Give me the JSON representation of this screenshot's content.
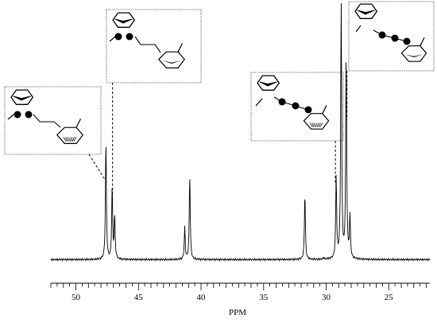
{
  "chart_data": {
    "type": "line",
    "xlabel": "PPM",
    "ylabel": "",
    "title": "",
    "x_reversed": true,
    "xlim": [
      52.0,
      21.5
    ],
    "ylim": [
      0,
      100
    ],
    "major_ticks": [
      50,
      45,
      40,
      35,
      30,
      25
    ],
    "tick_labels": [
      "50",
      "45",
      "40",
      "35",
      "30",
      "25"
    ],
    "minor_tick_step": 0.5,
    "grid": false,
    "baseline": 3.5,
    "peaks": [
      {
        "ppm": 47.6,
        "height": 45
      },
      {
        "ppm": 47.1,
        "height": 27
      },
      {
        "ppm": 46.9,
        "height": 16
      },
      {
        "ppm": 41.3,
        "height": 12
      },
      {
        "ppm": 40.9,
        "height": 32
      },
      {
        "ppm": 31.7,
        "height": 25
      },
      {
        "ppm": 29.2,
        "height": 31
      },
      {
        "ppm": 28.8,
        "height": 100
      },
      {
        "ppm": 28.4,
        "height": 78
      },
      {
        "ppm": 28.1,
        "height": 16
      },
      {
        "ppm": 30.2,
        "height": 0.6
      }
    ],
    "annotations": [
      {
        "name": "structure-a",
        "ppm": 47.6,
        "atoms_marked": 2,
        "linked": false
      },
      {
        "name": "structure-b",
        "ppm": 47.1,
        "atoms_marked": 2,
        "linked": false
      },
      {
        "name": "structure-c",
        "ppm": 29.2,
        "atoms_marked": 3,
        "linked": true
      },
      {
        "name": "structure-d",
        "ppm": 28.5,
        "atoms_marked": 3,
        "linked": true
      }
    ]
  }
}
